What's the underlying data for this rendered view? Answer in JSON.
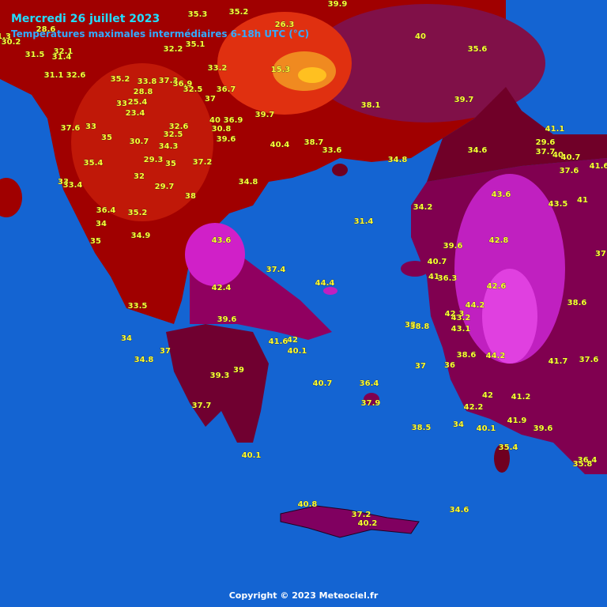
{
  "title": "Mercredi 26 juillet 2023",
  "subtitle": "Températures maximales intermédiaires 6-18h UTC (°C)",
  "copyright": "Copyright © 2023 Meteociel.fr",
  "stations": [
    35.3,
    35.2,
    39.9,
    26.3,
    40,
    28.6,
    30.2,
    1.3,
    32.2,
    35.1,
    35.6,
    31.5,
    32.1,
    31.4,
    33.2,
    15.3,
    31.1,
    32.6,
    35.2,
    33.8,
    37.3,
    36.9,
    32.5,
    36.7,
    28.8,
    37,
    33,
    25.4,
    38.1,
    39.7,
    23.4,
    39.7,
    40,
    36.9,
    37.6,
    33,
    32.6,
    30.8,
    41.1,
    35,
    32.5,
    39.6,
    30.7,
    40.4,
    38.7,
    29.6,
    34.3,
    33.6,
    34.6,
    37.7,
    40,
    40.7,
    29.3,
    35,
    37.2,
    34.8,
    35.4,
    37.6,
    41.6,
    32,
    33,
    33.4,
    34.8,
    29.7,
    43.6,
    38,
    43.5,
    41,
    36.4,
    35.2,
    34.2,
    31.4,
    34,
    34.9,
    43.6,
    42.8,
    39.6,
    35,
    37,
    40.7,
    37.4,
    41,
    36.3,
    44.4,
    42.4,
    42.6,
    33.5,
    44.2,
    38.6,
    42.3,
    43.2,
    39.6,
    38,
    38.8,
    43.1,
    34,
    41.6,
    42,
    40.1,
    37,
    38.6,
    44.2,
    34.8,
    41.7,
    37.6,
    37,
    36,
    39.3,
    39,
    40.7,
    36.4,
    42,
    41.2,
    37.7,
    37.9,
    42.2,
    34,
    40.1,
    41.9,
    38.5,
    39.6,
    35.4,
    40.1,
    36.4,
    35.8,
    40.8,
    37.2,
    40.2,
    34.6
  ]
}
